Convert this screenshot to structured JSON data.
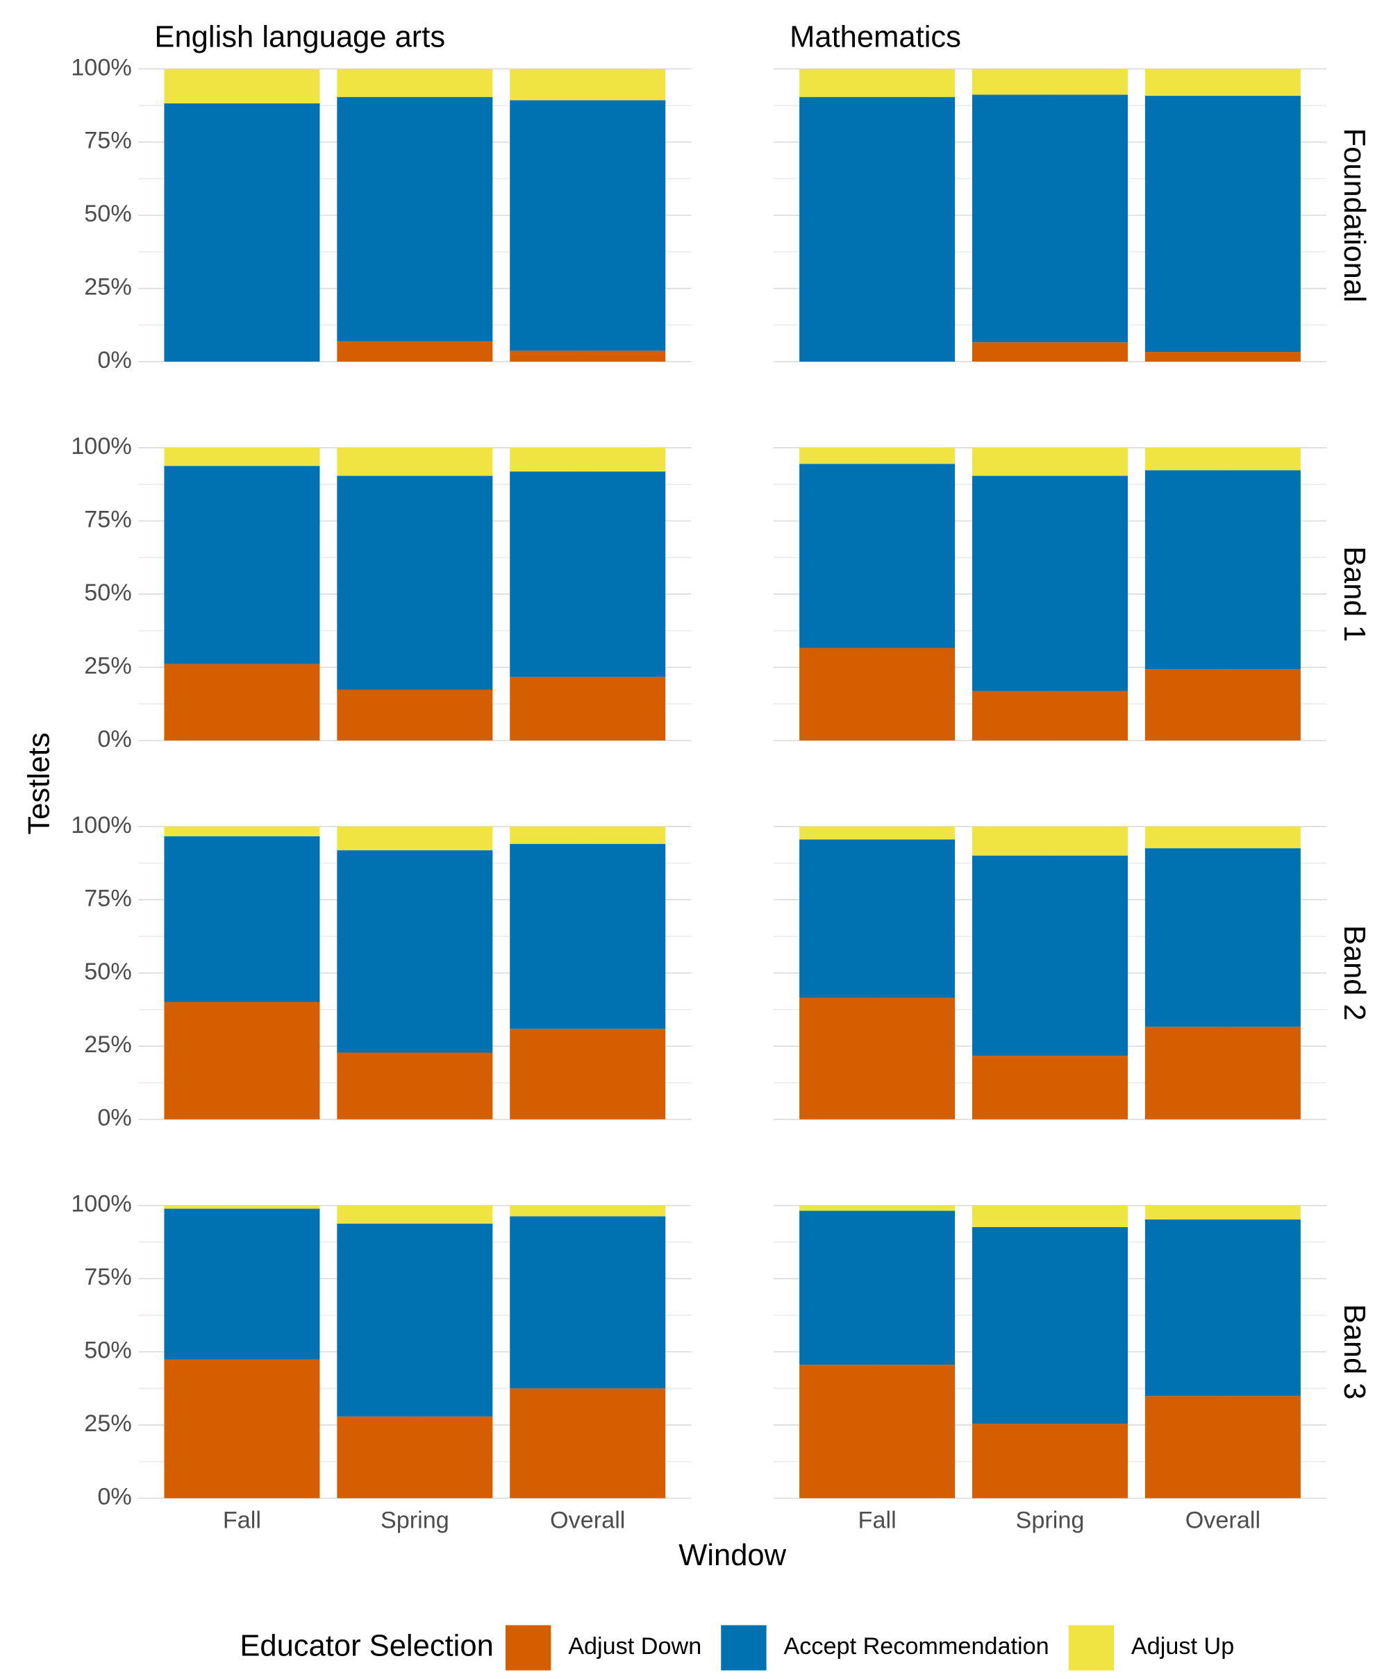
{
  "chart_data": {
    "type": "stacked_bar",
    "facet_cols": [
      "English language arts",
      "Mathematics"
    ],
    "facet_rows": [
      "Foundational",
      "Band 1",
      "Band 2",
      "Band 3"
    ],
    "x_label": "Window",
    "y_label": "Testlets",
    "legend_title": "Educator Selection",
    "categories": [
      "Fall",
      "Spring",
      "Overall"
    ],
    "series": [
      {
        "name": "Adjust Down",
        "color": "#d55e00"
      },
      {
        "name": "Accept Recommendation",
        "color": "#0072b2"
      },
      {
        "name": "Adjust Up",
        "color": "#f0e442"
      }
    ],
    "ylim": [
      0,
      100
    ],
    "yticks": [
      {
        "value": 0,
        "label": "0%"
      },
      {
        "value": 25,
        "label": "25%"
      },
      {
        "value": 50,
        "label": "50%"
      },
      {
        "value": 75,
        "label": "75%"
      },
      {
        "value": 100,
        "label": "100%"
      }
    ],
    "y_minor_ticks": [
      12.5,
      37.5,
      62.5,
      87.5
    ],
    "grid": true,
    "panels": [
      [
        {
          "values": [
            [
              0,
              7.0,
              3.7
            ],
            [
              88.2,
              83.4,
              85.6
            ],
            [
              11.8,
              9.6,
              10.7
            ]
          ]
        },
        {
          "values": [
            [
              0,
              6.6,
              3.3
            ],
            [
              90.4,
              84.6,
              87.5
            ],
            [
              9.6,
              8.8,
              9.2
            ]
          ]
        }
      ],
      [
        {
          "values": [
            [
              26.1,
              17.3,
              21.7
            ],
            [
              67.7,
              73.1,
              70.2
            ],
            [
              6.2,
              9.6,
              8.1
            ]
          ]
        },
        {
          "values": [
            [
              31.6,
              16.9,
              24.3
            ],
            [
              62.9,
              73.5,
              68.0
            ],
            [
              5.5,
              9.6,
              7.7
            ]
          ]
        }
      ],
      [
        {
          "values": [
            [
              40.1,
              22.8,
              30.9
            ],
            [
              56.6,
              69.1,
              63.2
            ],
            [
              3.3,
              8.1,
              5.9
            ]
          ]
        },
        {
          "values": [
            [
              41.5,
              21.7,
              31.6
            ],
            [
              54.1,
              68.4,
              61.0
            ],
            [
              4.4,
              9.9,
              7.4
            ]
          ]
        }
      ],
      [
        {
          "values": [
            [
              47.4,
              27.9,
              37.5
            ],
            [
              51.5,
              65.9,
              58.8
            ],
            [
              1.1,
              6.2,
              3.7
            ]
          ]
        },
        {
          "values": [
            [
              45.6,
              25.4,
              34.9
            ],
            [
              52.6,
              67.2,
              60.3
            ],
            [
              1.8,
              7.4,
              4.8
            ]
          ]
        }
      ]
    ]
  }
}
